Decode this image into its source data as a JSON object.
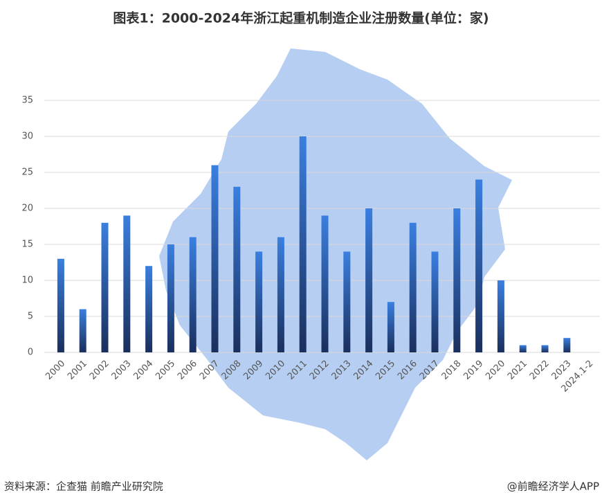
{
  "chart_data": {
    "type": "bar",
    "title": "图表1：2000-2024年浙江起重机制造企业注册数量(单位：家)",
    "categories": [
      "2000",
      "2001",
      "2002",
      "2003",
      "2004",
      "2005",
      "2006",
      "2007",
      "2008",
      "2009",
      "2010",
      "2011",
      "2012",
      "2013",
      "2014",
      "2015",
      "2016",
      "2017",
      "2018",
      "2019",
      "2020",
      "2021",
      "2022",
      "2023",
      "2024.1-2"
    ],
    "values": [
      13,
      6,
      18,
      19,
      12,
      15,
      16,
      26,
      23,
      14,
      16,
      30,
      19,
      14,
      20,
      7,
      18,
      14,
      20,
      24,
      10,
      1,
      1,
      2,
      0
    ],
    "color_top": "#3a7fe0",
    "color_bottom": "#1a2f5c",
    "ylim": [
      0,
      35
    ],
    "yticks": [
      0,
      5,
      10,
      15,
      20,
      25,
      30,
      35
    ],
    "grid": true,
    "source": "资料来源：企查猫 前瞻产业研究院",
    "credit": "@前瞻经济学人APP"
  }
}
